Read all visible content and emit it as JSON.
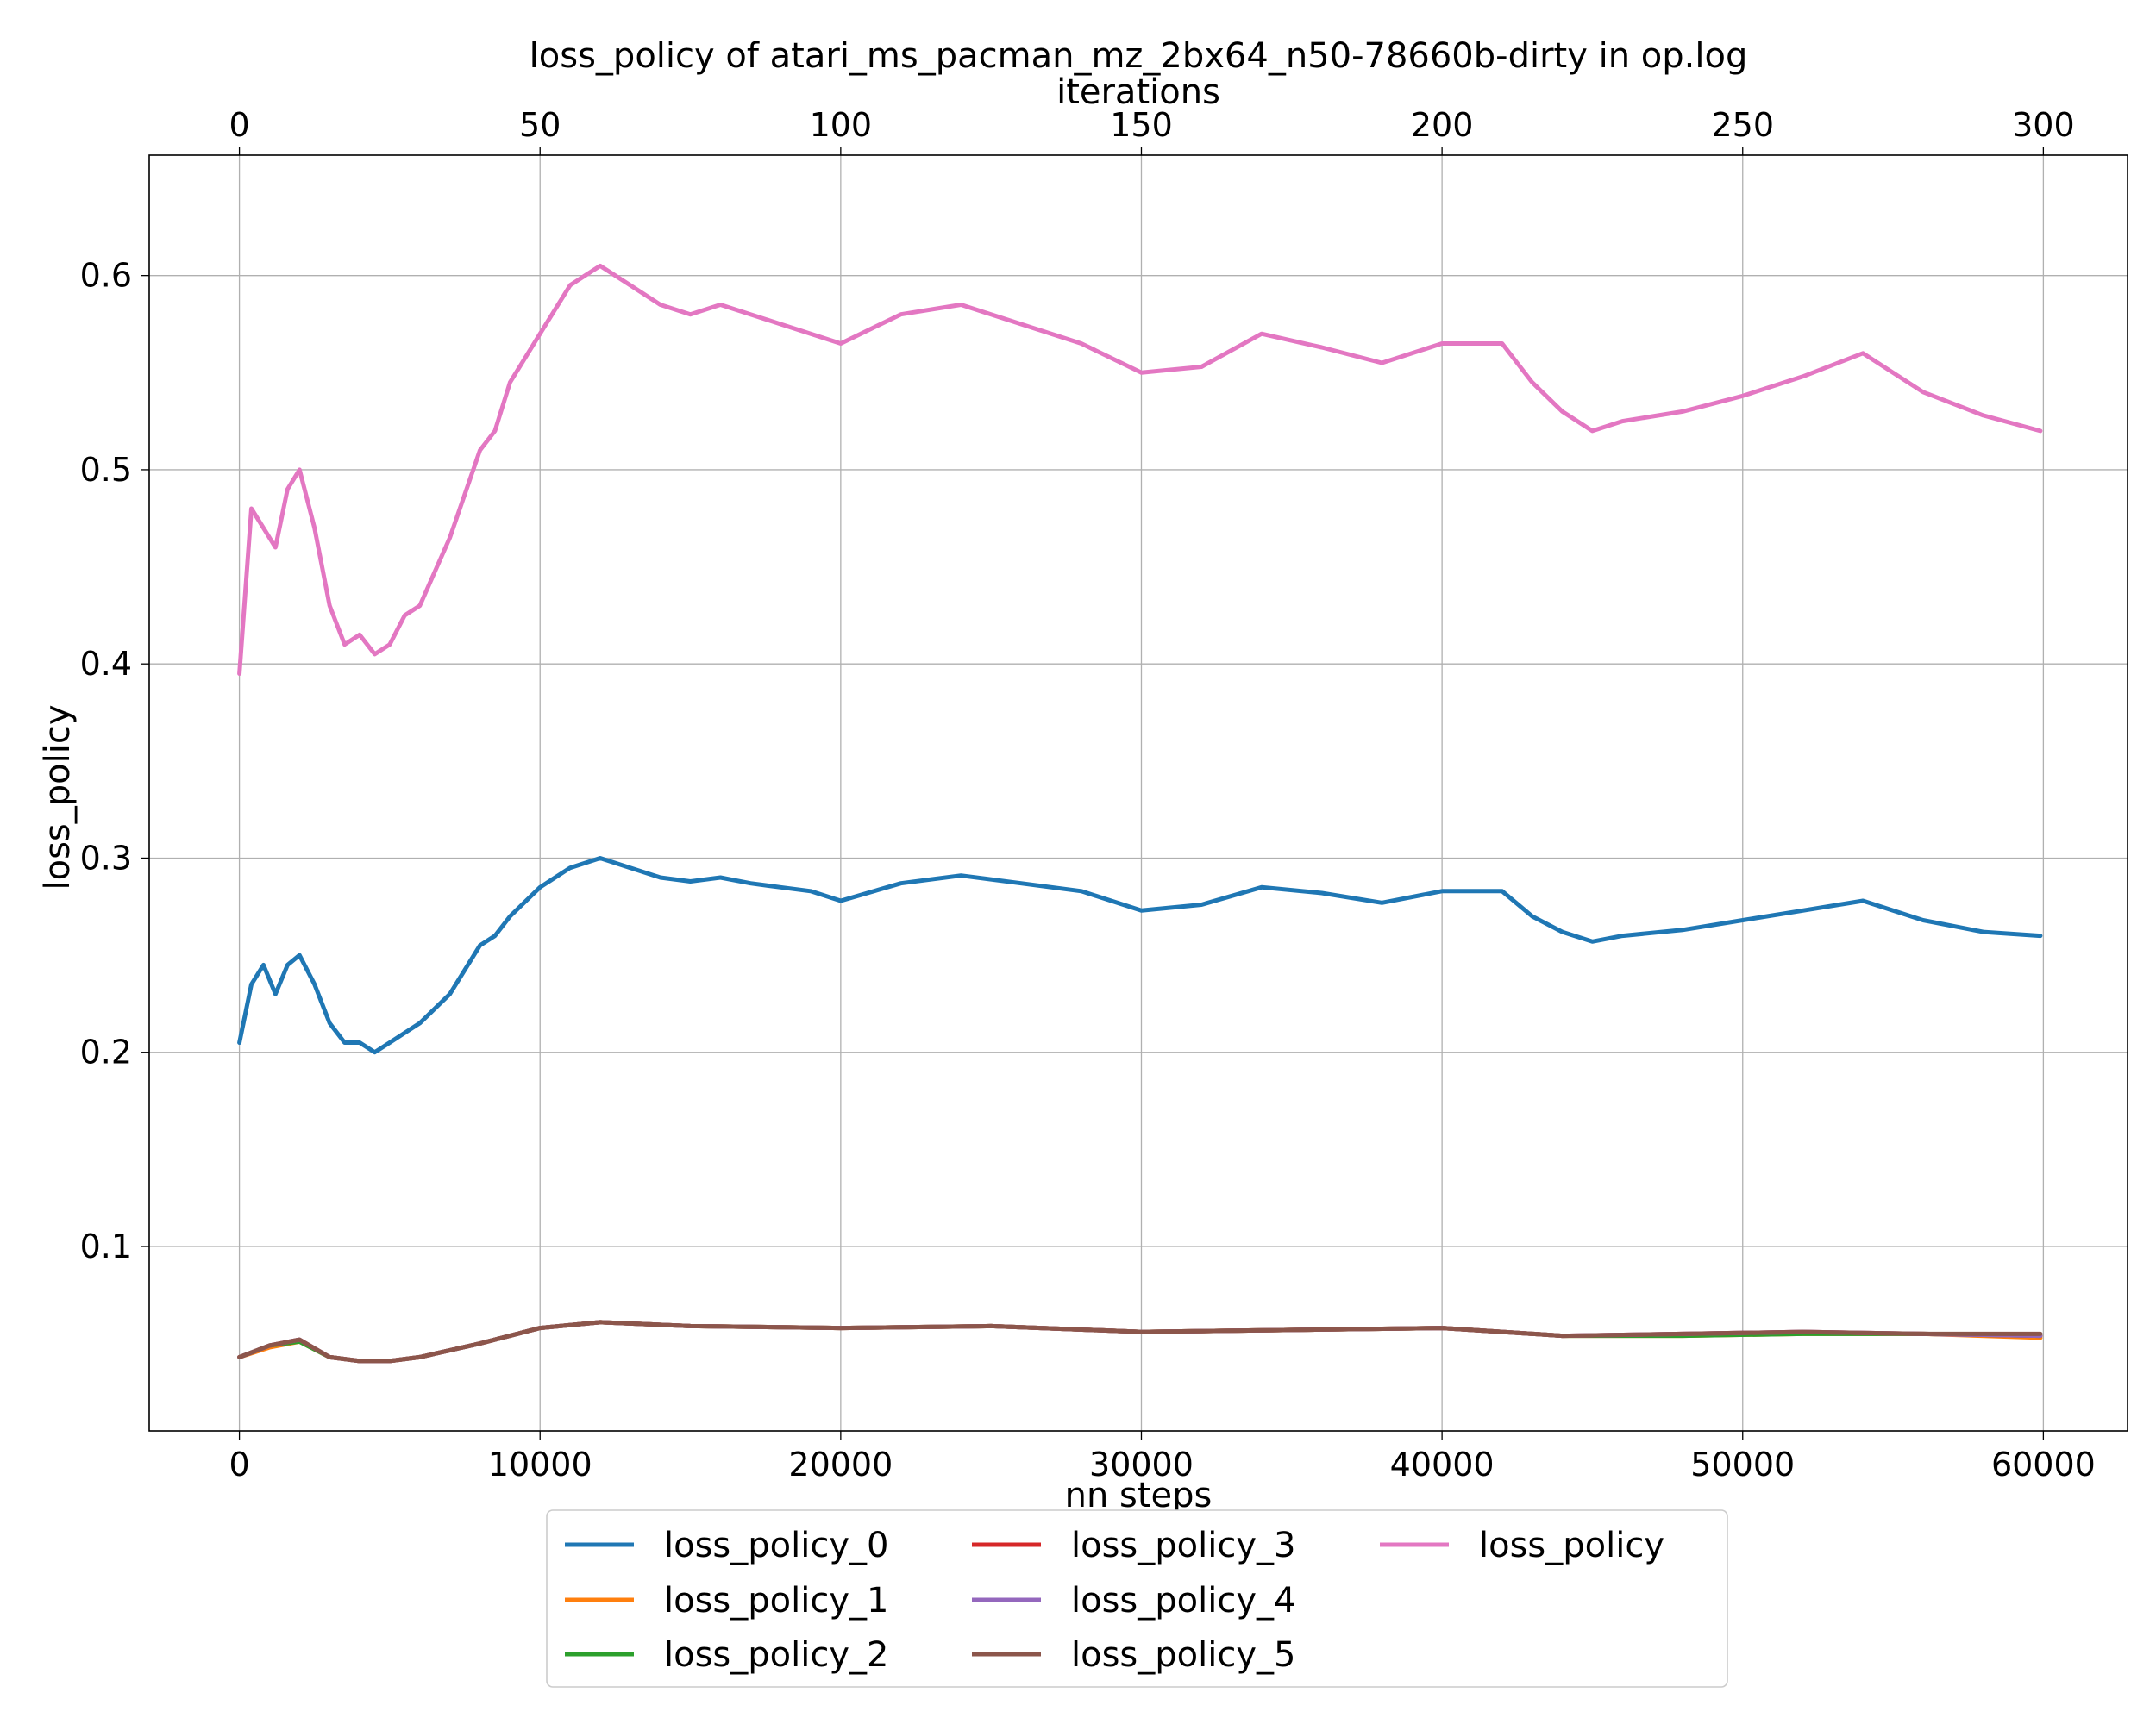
{
  "chart_data": {
    "type": "line",
    "title": "loss_policy of atari_ms_pacman_mz_2bx64_n50-78660b-dirty in op.log",
    "xlabel": "nn steps",
    "x2label": "iterations",
    "ylabel": "loss_policy",
    "xlim": [
      -3000,
      62800
    ],
    "x2lim": [
      -15,
      314
    ],
    "ylim": [
      0.005,
      0.662
    ],
    "xticks": [
      0,
      10000,
      20000,
      30000,
      40000,
      50000,
      60000
    ],
    "xtick_labels": [
      "0",
      "10000",
      "20000",
      "30000",
      "40000",
      "50000",
      "60000"
    ],
    "x2ticks": [
      0,
      50,
      100,
      150,
      200,
      250,
      300
    ],
    "x2tick_labels": [
      "0",
      "50",
      "100",
      "150",
      "200",
      "250",
      "300"
    ],
    "yticks": [
      0.1,
      0.2,
      0.3,
      0.4,
      0.5,
      0.6
    ],
    "ytick_labels": [
      "0.1",
      "0.2",
      "0.3",
      "0.4",
      "0.5",
      "0.6"
    ],
    "grid": true,
    "legend_position": "bottom-center",
    "legend_columns": 3,
    "series": [
      {
        "name": "loss_policy_0",
        "color": "#1f77b4",
        "x": [
          0,
          400,
          800,
          1200,
          1600,
          2000,
          2500,
          3000,
          3500,
          4000,
          4500,
          5000,
          5500,
          6000,
          7000,
          8000,
          8500,
          9000,
          10000,
          11000,
          12000,
          13000,
          14000,
          15000,
          16000,
          17000,
          18000,
          19000,
          20000,
          22000,
          24000,
          26000,
          28000,
          30000,
          32000,
          34000,
          36000,
          38000,
          40000,
          42000,
          43000,
          44000,
          45000,
          46000,
          48000,
          50000,
          52000,
          54000,
          56000,
          58000,
          59900
        ],
        "y": [
          0.205,
          0.235,
          0.245,
          0.23,
          0.245,
          0.25,
          0.235,
          0.215,
          0.205,
          0.205,
          0.2,
          0.205,
          0.21,
          0.215,
          0.23,
          0.255,
          0.26,
          0.27,
          0.285,
          0.295,
          0.3,
          0.295,
          0.29,
          0.288,
          0.29,
          0.287,
          0.285,
          0.283,
          0.278,
          0.287,
          0.291,
          0.287,
          0.283,
          0.273,
          0.276,
          0.285,
          0.282,
          0.277,
          0.283,
          0.283,
          0.27,
          0.262,
          0.257,
          0.26,
          0.263,
          0.268,
          0.273,
          0.278,
          0.268,
          0.262,
          0.26
        ]
      },
      {
        "name": "loss_policy_1",
        "color": "#ff7f0e",
        "x": [
          0,
          1000,
          2000,
          3000,
          4000,
          5000,
          6000,
          8000,
          10000,
          12000,
          15000,
          20000,
          25000,
          30000,
          35000,
          40000,
          44000,
          48000,
          52000,
          56000,
          59900
        ],
        "y": [
          0.043,
          0.048,
          0.051,
          0.043,
          0.041,
          0.041,
          0.043,
          0.05,
          0.058,
          0.061,
          0.059,
          0.058,
          0.059,
          0.056,
          0.057,
          0.058,
          0.054,
          0.054,
          0.055,
          0.055,
          0.053
        ]
      },
      {
        "name": "loss_policy_2",
        "color": "#2ca02c",
        "x": [
          0,
          1000,
          2000,
          3000,
          4000,
          5000,
          6000,
          8000,
          10000,
          12000,
          15000,
          20000,
          25000,
          30000,
          35000,
          40000,
          44000,
          48000,
          52000,
          56000,
          59900
        ],
        "y": [
          0.043,
          0.049,
          0.051,
          0.043,
          0.041,
          0.041,
          0.043,
          0.05,
          0.058,
          0.061,
          0.059,
          0.058,
          0.059,
          0.056,
          0.057,
          0.058,
          0.054,
          0.054,
          0.055,
          0.055,
          0.054
        ]
      },
      {
        "name": "loss_policy_3",
        "color": "#d62728",
        "x": [
          0,
          1000,
          2000,
          3000,
          4000,
          5000,
          6000,
          8000,
          10000,
          12000,
          15000,
          20000,
          25000,
          30000,
          35000,
          40000,
          44000,
          48000,
          52000,
          56000,
          59900
        ],
        "y": [
          0.043,
          0.049,
          0.052,
          0.043,
          0.041,
          0.041,
          0.043,
          0.05,
          0.058,
          0.061,
          0.059,
          0.058,
          0.059,
          0.056,
          0.057,
          0.058,
          0.054,
          0.055,
          0.056,
          0.055,
          0.054
        ]
      },
      {
        "name": "loss_policy_4",
        "color": "#9467bd",
        "x": [
          0,
          1000,
          2000,
          3000,
          4000,
          5000,
          6000,
          8000,
          10000,
          12000,
          15000,
          20000,
          25000,
          30000,
          35000,
          40000,
          44000,
          48000,
          52000,
          56000,
          59900
        ],
        "y": [
          0.043,
          0.049,
          0.052,
          0.043,
          0.041,
          0.041,
          0.043,
          0.05,
          0.058,
          0.061,
          0.059,
          0.058,
          0.059,
          0.056,
          0.057,
          0.058,
          0.054,
          0.055,
          0.056,
          0.055,
          0.054
        ]
      },
      {
        "name": "loss_policy_5",
        "color": "#8c564b",
        "x": [
          0,
          1000,
          2000,
          3000,
          4000,
          5000,
          6000,
          8000,
          10000,
          12000,
          15000,
          20000,
          25000,
          30000,
          35000,
          40000,
          44000,
          48000,
          52000,
          56000,
          59900
        ],
        "y": [
          0.043,
          0.049,
          0.052,
          0.043,
          0.041,
          0.041,
          0.043,
          0.05,
          0.058,
          0.061,
          0.059,
          0.058,
          0.059,
          0.056,
          0.057,
          0.058,
          0.054,
          0.055,
          0.056,
          0.055,
          0.055
        ]
      },
      {
        "name": "loss_policy",
        "color": "#e377c2",
        "x": [
          0,
          400,
          800,
          1200,
          1600,
          2000,
          2500,
          3000,
          3500,
          4000,
          4500,
          5000,
          5500,
          6000,
          7000,
          8000,
          8500,
          9000,
          10000,
          11000,
          12000,
          13000,
          14000,
          15000,
          16000,
          17000,
          18000,
          19000,
          20000,
          22000,
          24000,
          26000,
          28000,
          30000,
          32000,
          34000,
          36000,
          38000,
          40000,
          42000,
          43000,
          44000,
          45000,
          46000,
          48000,
          50000,
          52000,
          54000,
          56000,
          58000,
          59900
        ],
        "y": [
          0.395,
          0.48,
          0.47,
          0.46,
          0.49,
          0.5,
          0.47,
          0.43,
          0.41,
          0.415,
          0.405,
          0.41,
          0.425,
          0.43,
          0.465,
          0.51,
          0.52,
          0.545,
          0.57,
          0.595,
          0.605,
          0.595,
          0.585,
          0.58,
          0.585,
          0.58,
          0.575,
          0.57,
          0.565,
          0.58,
          0.585,
          0.575,
          0.565,
          0.55,
          0.553,
          0.57,
          0.563,
          0.555,
          0.565,
          0.565,
          0.545,
          0.53,
          0.52,
          0.525,
          0.53,
          0.538,
          0.548,
          0.56,
          0.54,
          0.528,
          0.52
        ]
      }
    ]
  }
}
